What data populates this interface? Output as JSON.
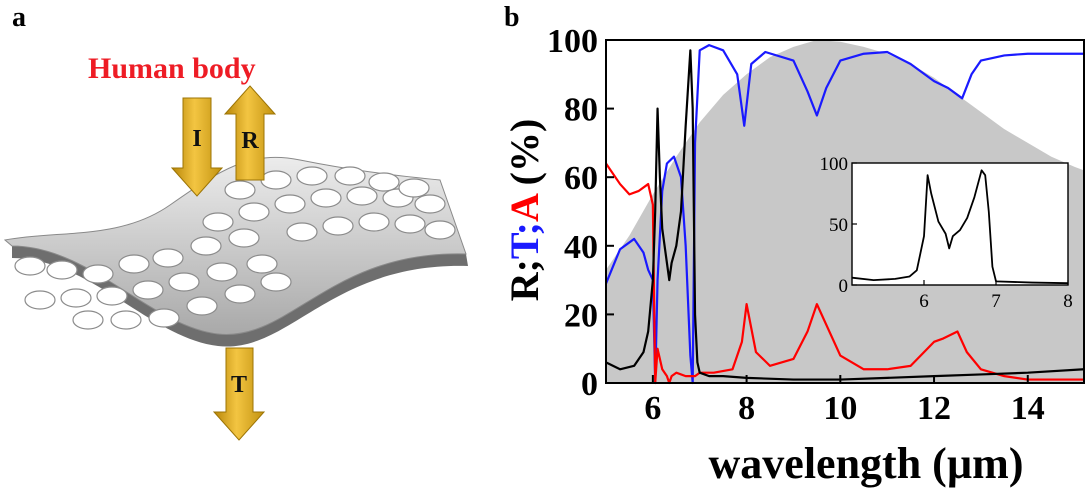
{
  "panel_a": {
    "letter": "a",
    "title": "Human body",
    "arrows": [
      {
        "label": "I",
        "direction": "down"
      },
      {
        "label": "R",
        "direction": "up"
      },
      {
        "label": "T",
        "direction": "down"
      }
    ],
    "colors": {
      "title": "#ee1c25",
      "arrow": "#d4a017",
      "sheet": "#c8c8c8"
    }
  },
  "panel_b": {
    "letter": "b"
  },
  "chart_data": [
    {
      "type": "line",
      "xlabel": "wavelength (µm)",
      "ylabel_parts": [
        {
          "text": "R;",
          "color": "#000000"
        },
        {
          "text": "T;",
          "color": "#1a1aff"
        },
        {
          "text": "A",
          "color": "#ff0000"
        },
        {
          "text": " (%)",
          "color": "#000000"
        }
      ],
      "xlim": [
        5,
        15.2
      ],
      "ylim": [
        0,
        100
      ],
      "xticks": [
        6,
        8,
        10,
        12,
        14
      ],
      "yticks": [
        0,
        20,
        40,
        60,
        80,
        100
      ],
      "background_area": {
        "color": "#c8c8c8",
        "x": [
          5,
          5.5,
          6,
          6.5,
          7,
          7.5,
          8,
          8.5,
          9,
          9.5,
          10,
          10.5,
          11,
          11.5,
          12,
          12.5,
          13,
          13.5,
          14,
          14.5,
          15,
          15.2
        ],
        "y": [
          33,
          43,
          55,
          66,
          76,
          84,
          90,
          95,
          98,
          100,
          99.5,
          98,
          96,
          93,
          89,
          84,
          79,
          74,
          70,
          66,
          63,
          62
        ]
      },
      "series": [
        {
          "color": "#1a1aff",
          "x": [
            5,
            5.3,
            5.6,
            5.8,
            5.9,
            6.0,
            6.05,
            6.1,
            6.2,
            6.3,
            6.45,
            6.6,
            6.7,
            6.8,
            6.85,
            6.9,
            7.0,
            7.2,
            7.5,
            7.8,
            7.95,
            8.1,
            8.4,
            9.0,
            9.3,
            9.5,
            9.7,
            10.0,
            10.5,
            11.0,
            11.5,
            12.0,
            12.3,
            12.6,
            12.8,
            13.0,
            13.5,
            14.0,
            15.2
          ],
          "y": [
            29,
            39,
            42,
            38,
            33,
            30,
            0,
            30,
            56,
            64,
            66,
            60,
            40,
            8,
            0,
            70,
            97,
            98.5,
            97,
            90,
            75,
            93,
            96.5,
            94,
            85,
            78,
            86,
            94,
            96,
            96.5,
            93,
            88,
            86,
            83,
            90,
            94,
            95.5,
            96,
            96
          ]
        },
        {
          "color": "#ff0000",
          "x": [
            5,
            5.3,
            5.5,
            5.7,
            5.9,
            6.0,
            6.05,
            6.1,
            6.2,
            6.3,
            6.35,
            6.4,
            6.5,
            6.7,
            6.9,
            7.0,
            7.3,
            7.7,
            7.9,
            8.0,
            8.2,
            8.5,
            9.0,
            9.3,
            9.5,
            9.7,
            10.0,
            10.5,
            11.0,
            11.5,
            12.0,
            12.2,
            12.5,
            12.7,
            13.0,
            13.5,
            14.0,
            15.2
          ],
          "y": [
            64,
            58,
            55,
            56,
            58,
            52,
            0,
            10,
            4,
            2,
            0,
            2,
            3,
            2,
            2,
            3,
            3,
            4,
            12,
            23,
            9,
            5,
            7,
            15,
            23,
            17,
            8,
            4,
            4,
            5,
            12,
            13,
            15,
            9,
            4,
            2,
            1,
            1
          ]
        },
        {
          "color": "#000000",
          "x": [
            5,
            5.3,
            5.6,
            5.8,
            5.9,
            6.0,
            6.05,
            6.1,
            6.15,
            6.2,
            6.3,
            6.35,
            6.4,
            6.5,
            6.6,
            6.7,
            6.8,
            6.85,
            6.9,
            6.95,
            7.0,
            7.2,
            7.5,
            8.0,
            9.0,
            10.0,
            11.0,
            12.0,
            13.0,
            14.0,
            15.2
          ],
          "y": [
            6,
            4,
            5,
            9,
            15,
            30,
            50,
            80,
            60,
            45,
            35,
            30,
            35,
            40,
            50,
            75,
            97,
            80,
            20,
            6,
            3,
            2,
            2,
            1.5,
            1,
            1,
            1.5,
            2,
            2.5,
            3,
            4
          ]
        }
      ]
    },
    {
      "type": "line",
      "xlim": [
        5,
        8
      ],
      "ylim": [
        0,
        100
      ],
      "xticks": [
        6,
        7,
        8
      ],
      "yticks": [
        0,
        50,
        100
      ],
      "series": [
        {
          "color": "#000000",
          "x": [
            5,
            5.3,
            5.6,
            5.8,
            5.9,
            6.0,
            6.05,
            6.1,
            6.2,
            6.3,
            6.35,
            6.4,
            6.5,
            6.6,
            6.7,
            6.8,
            6.85,
            6.9,
            6.95,
            7.0,
            7.5,
            8.0
          ],
          "y": [
            6,
            4,
            5,
            7,
            12,
            40,
            90,
            75,
            52,
            42,
            30,
            40,
            45,
            55,
            72,
            94,
            90,
            60,
            15,
            3,
            2,
            1.5
          ]
        }
      ]
    }
  ]
}
